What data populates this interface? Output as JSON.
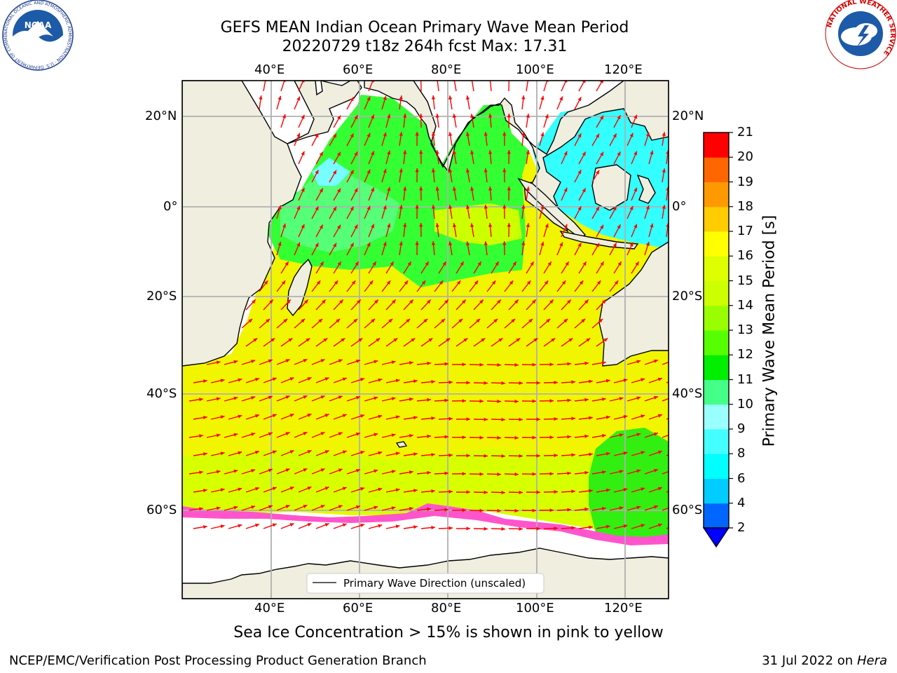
{
  "title": {
    "line1": "GEFS MEAN Indian Ocean Primary Wave Mean Period",
    "line2": "20220729 t18z 264h fcst   Max: 17.31"
  },
  "map": {
    "lon_labels": [
      "40°E",
      "60°E",
      "80°E",
      "100°E",
      "120°E"
    ],
    "lat_labels": [
      "20°N",
      "0°",
      "20°S",
      "40°S",
      "60°S"
    ],
    "legend_label": "Primary Wave Direction (unscaled)",
    "land_color": "#efeedf",
    "arrow_color": "#ff0000"
  },
  "colorbar": {
    "title": "Primary Wave Mean Period [s]",
    "ticks": [
      "2",
      "4",
      "6",
      "8",
      "9",
      "10",
      "11",
      "12",
      "13",
      "14",
      "15",
      "16",
      "17",
      "18",
      "19",
      "20",
      "21"
    ],
    "colors": [
      "#0066ff",
      "#00ccff",
      "#00ffff",
      "#44ffff",
      "#99ffff",
      "#44ff88",
      "#00ee00",
      "#55ff00",
      "#99ff00",
      "#ccff00",
      "#ddff00",
      "#ffff00",
      "#ffcc00",
      "#ff9900",
      "#ff6600",
      "#ff3300",
      "#ff0000"
    ],
    "under_color": "#0000ff"
  },
  "caption": "Sea Ice Concentration > 15% is shown in pink to yellow",
  "footer": {
    "left": "NCEP/EMC/Verification Post Processing Product Generation Branch",
    "right_date": "31 Jul 2022 on",
    "right_host": "Hera"
  },
  "logos": {
    "noaa": "NOAA",
    "noaa_ring": "NATIONAL OCEANIC AND ATMOSPHERIC ADMINISTRATION · U.S. DEPARTMENT OF COMMERCE",
    "nws_ring": "NATIONAL WEATHER SERVICE"
  }
}
